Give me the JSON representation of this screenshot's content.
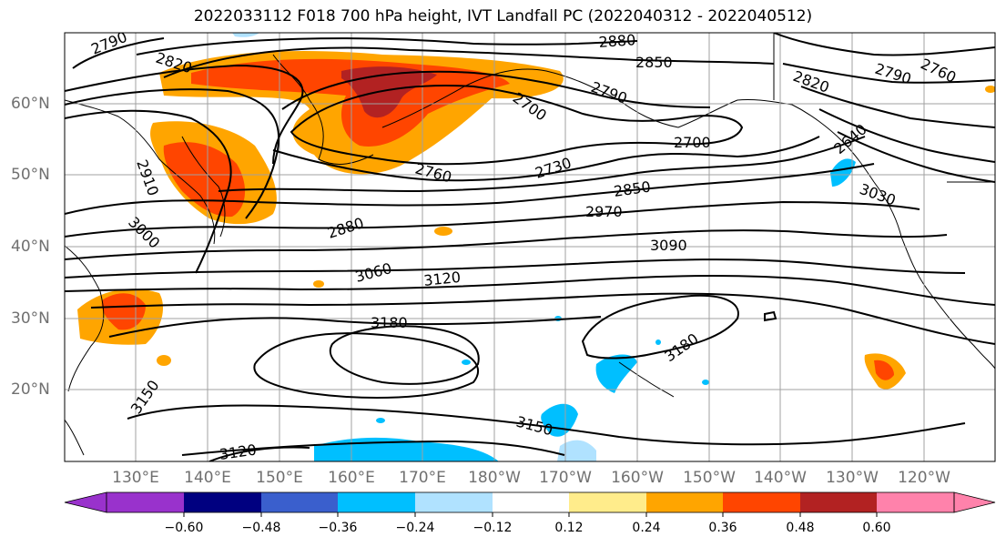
{
  "title": "2022033112 F018 700 hPa height, IVT Landfall PC (2022040312 - 2022040512)",
  "latitude_labels": [
    "60°N",
    "50°N",
    "40°N",
    "30°N",
    "20°N"
  ],
  "longitude_labels": [
    "130°E",
    "140°E",
    "150°E",
    "160°E",
    "170°E",
    "180°W",
    "170°W",
    "160°W",
    "150°W",
    "140°W",
    "130°W",
    "120°W"
  ],
  "contour_labels": [
    "2790",
    "2820",
    "2880",
    "2850",
    "2790",
    "2700",
    "2820",
    "2790",
    "2760",
    "2910",
    "3000",
    "2760",
    "2730",
    "2700",
    "2640",
    "2850",
    "2970",
    "3030",
    "2880",
    "3090",
    "3060",
    "3120",
    "3180",
    "3180",
    "3150",
    "3150",
    "3120"
  ],
  "colorbar": {
    "tick_labels": [
      "−0.60",
      "−0.48",
      "−0.36",
      "−0.24",
      "−0.12",
      "0.12",
      "0.24",
      "0.36",
      "0.48",
      "0.60"
    ],
    "colors": [
      "#9932cc",
      "#000080",
      "#3a5fcd",
      "#00bfff",
      "#b0e2ff",
      "#ffffff",
      "#ffec8b",
      "#ffa500",
      "#ff4500",
      "#b22222",
      "#ff82ab"
    ]
  },
  "colors": {
    "positive_anomaly_low": "#ffa500",
    "positive_anomaly_mid": "#ff4500",
    "positive_anomaly_high": "#b22222",
    "negative_anomaly_low": "#00bfff",
    "negative_anomaly_faint": "#b0e2ff",
    "contour_line": "#000000",
    "gridline": "#a0a0a0"
  }
}
